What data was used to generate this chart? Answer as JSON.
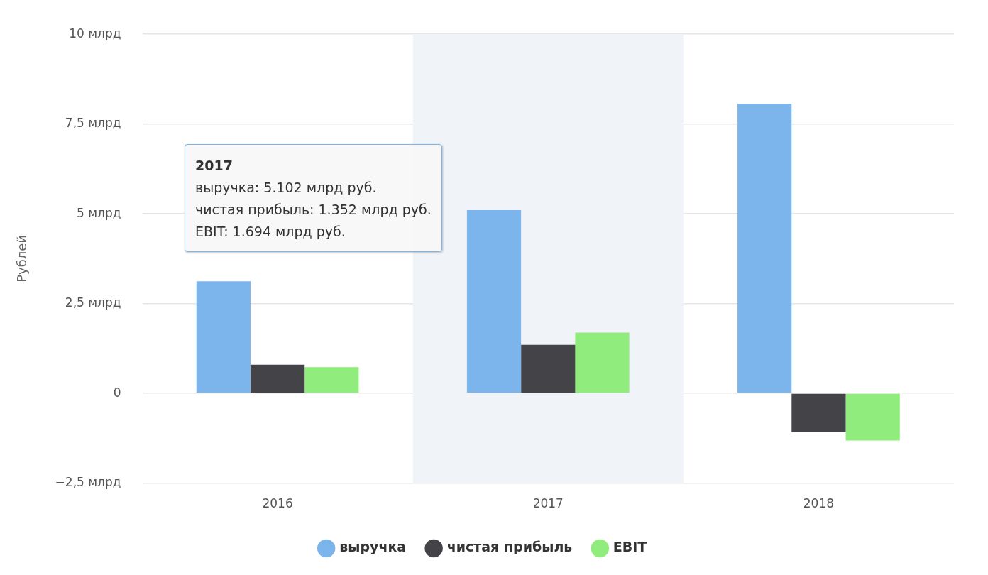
{
  "chart_data": {
    "type": "bar",
    "ylabel": "Рублей",
    "categories": [
      "2016",
      "2017",
      "2018"
    ],
    "series": [
      {
        "name": "выручка",
        "color": "#7cb5ec",
        "values": [
          3.12,
          5.102,
          8.06
        ]
      },
      {
        "name": "чистая прибыль",
        "color": "#434348",
        "values": [
          0.8,
          1.352,
          -1.08
        ]
      },
      {
        "name": "EBIT",
        "color": "#90ed7d",
        "values": [
          0.73,
          1.694,
          -1.31
        ]
      }
    ],
    "ylim": [
      -2.5,
      10
    ],
    "yticks": [
      {
        "value": -2.5,
        "label": "−2,5 млрд"
      },
      {
        "value": 0,
        "label": "0"
      },
      {
        "value": 2.5,
        "label": "2,5 млрд"
      },
      {
        "value": 5,
        "label": "5 млрд"
      },
      {
        "value": 7.5,
        "label": "7,5 млрд"
      },
      {
        "value": 10,
        "label": "10 млрд"
      }
    ],
    "grid": "y",
    "legend": "bottom",
    "marker": "circle",
    "bands": [
      {
        "axis": "x",
        "from": "2017",
        "to": "2017",
        "color": "#f0f3f8"
      }
    ],
    "annotations": [
      "2017",
      "выручка: 5.102 млрд руб.",
      "чистая прибыль: 1.352 млрд руб.",
      "EBIT: 1.694 млрд руб."
    ]
  }
}
